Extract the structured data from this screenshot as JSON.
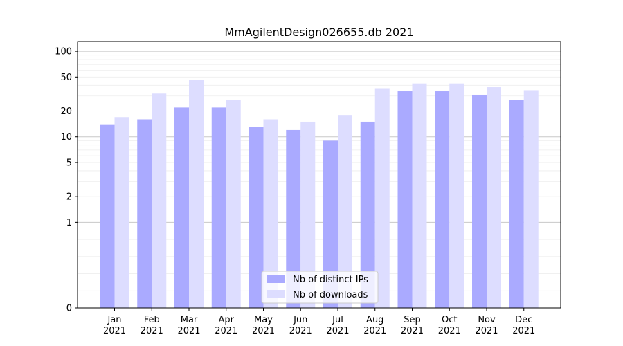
{
  "chart_data": {
    "type": "bar",
    "title": "MmAgilentDesign026655.db 2021",
    "xlabel": "",
    "ylabel": "",
    "y_scale": "symlog",
    "y_ticks": [
      0,
      1,
      2,
      5,
      10,
      20,
      50,
      100
    ],
    "ylim": [
      0,
      130
    ],
    "grid": true,
    "legend_position": "bottom-center",
    "categories": [
      [
        "Jan",
        "2021"
      ],
      [
        "Feb",
        "2021"
      ],
      [
        "Mar",
        "2021"
      ],
      [
        "Apr",
        "2021"
      ],
      [
        "May",
        "2021"
      ],
      [
        "Jun",
        "2021"
      ],
      [
        "Jul",
        "2021"
      ],
      [
        "Aug",
        "2021"
      ],
      [
        "Sep",
        "2021"
      ],
      [
        "Oct",
        "2021"
      ],
      [
        "Nov",
        "2021"
      ],
      [
        "Dec",
        "2021"
      ]
    ],
    "series": [
      {
        "name": "Nb of distinct IPs",
        "color": "#aaaaff",
        "values": [
          14,
          16,
          22,
          22,
          13,
          12,
          9,
          15,
          34,
          34,
          31,
          27
        ]
      },
      {
        "name": "Nb of downloads",
        "color": "#ddddff",
        "values": [
          17,
          32,
          46,
          27,
          16,
          15,
          18,
          37,
          42,
          42,
          38,
          35
        ]
      }
    ]
  }
}
